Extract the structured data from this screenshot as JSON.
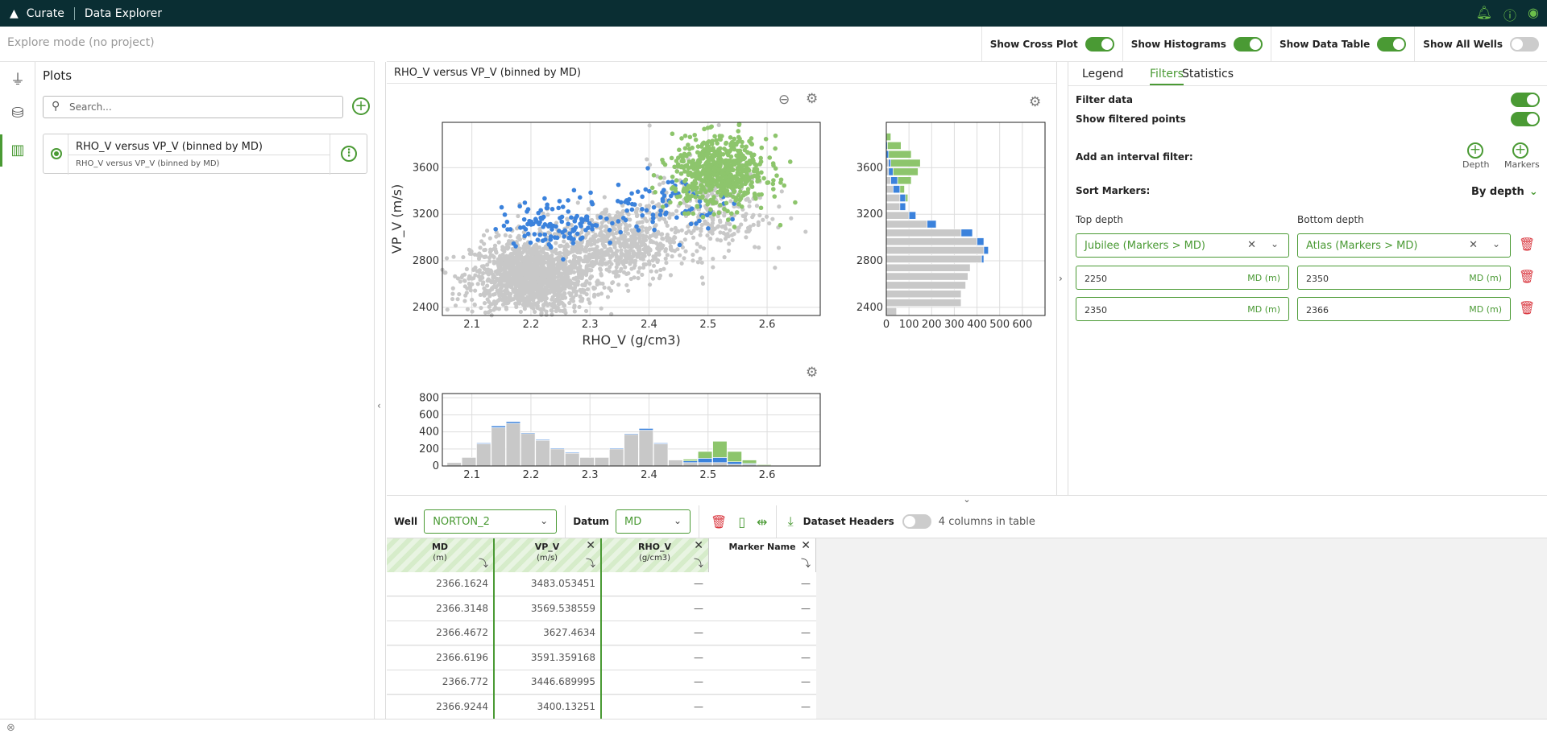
{
  "topbar": {
    "app": "Curate",
    "page": "Data Explorer"
  },
  "mode": "Explore mode (no project)",
  "plots": {
    "title": "Plots",
    "search_placeholder": "Search...",
    "card_title": "RHO_V versus VP_V (binned by MD)",
    "card_subtitle": "RHO_V versus VP_V (binned by MD)"
  },
  "toggles": [
    {
      "label": "Show Cross Plot",
      "on": true
    },
    {
      "label": "Show Histograms",
      "on": true
    },
    {
      "label": "Show Data Table",
      "on": true
    },
    {
      "label": "Show All Wells",
      "on": false
    }
  ],
  "plot_title": "RHO_V versus VP_V (binned by MD)",
  "colors": {
    "accent": "#4a9a34",
    "topbar": "#0a2e33",
    "blue": "#3b82dc",
    "green": "#8dc56c",
    "gray": "#c8c8c8",
    "danger": "#d9363e"
  },
  "chart_data": [
    {
      "type": "scatter",
      "xlabel": "RHO_V (g/cm3)",
      "ylabel": "VP_V (m/s)",
      "xlim": [
        2.05,
        2.69
      ],
      "ylim": [
        2330,
        3990
      ],
      "x_ticks": [
        "2.1",
        "2.2",
        "2.3",
        "2.4",
        "2.5",
        "2.6"
      ],
      "y_ticks": [
        "2400",
        "2800",
        "3200",
        "3600"
      ],
      "grid": true,
      "series": [
        {
          "color": "gray",
          "clusters": [
            {
              "cx": 2.2,
              "cy": 2660,
              "sx": 0.05,
              "sy": 160,
              "n": 1500
            },
            {
              "cx": 2.35,
              "cy": 2950,
              "sx": 0.05,
              "sy": 160,
              "n": 600
            },
            {
              "cx": 2.5,
              "cy": 3250,
              "sx": 0.05,
              "sy": 200,
              "n": 300
            }
          ]
        },
        {
          "color": "blue",
          "clusters": [
            {
              "cx": 2.25,
              "cy": 3120,
              "sx": 0.05,
              "sy": 100,
              "n": 120
            },
            {
              "cx": 2.42,
              "cy": 3300,
              "sx": 0.05,
              "sy": 120,
              "n": 80
            }
          ]
        },
        {
          "color": "green",
          "clusters": [
            {
              "cx": 2.52,
              "cy": 3560,
              "sx": 0.04,
              "sy": 150,
              "n": 650
            }
          ]
        }
      ]
    },
    {
      "type": "bar",
      "orientation": "horizontal",
      "ylim": [
        2330,
        3990
      ],
      "xlim": [
        0,
        700
      ],
      "x_ticks": [
        "0",
        "100",
        "200",
        "300",
        "400",
        "500",
        "600"
      ],
      "y_ticks": [
        "2400",
        "2800",
        "3200",
        "3600"
      ],
      "bins": [
        2365,
        2440,
        2515,
        2590,
        2665,
        2740,
        2815,
        2890,
        2965,
        3040,
        3115,
        3190,
        3265,
        3340,
        3415,
        3490,
        3565,
        3640,
        3715,
        3790,
        3865
      ],
      "series": [
        {
          "color": "gray",
          "values": [
            45,
            330,
            330,
            350,
            360,
            370,
            420,
            430,
            400,
            330,
            180,
            100,
            60,
            60,
            30,
            20,
            10,
            10,
            0,
            0,
            0
          ]
        },
        {
          "color": "blue",
          "values": [
            0,
            0,
            0,
            0,
            0,
            0,
            10,
            20,
            30,
            50,
            40,
            30,
            25,
            25,
            30,
            30,
            20,
            10,
            10,
            5,
            0
          ]
        },
        {
          "color": "green",
          "values": [
            0,
            0,
            0,
            0,
            0,
            0,
            0,
            0,
            0,
            0,
            0,
            0,
            0,
            10,
            20,
            60,
            110,
            130,
            100,
            60,
            20
          ]
        }
      ]
    },
    {
      "type": "bar",
      "orientation": "vertical",
      "xlim": [
        2.05,
        2.69
      ],
      "ylim": [
        0,
        850
      ],
      "x_ticks": [
        "2.1",
        "2.2",
        "2.3",
        "2.4",
        "2.5",
        "2.6"
      ],
      "y_ticks": [
        "0",
        "200",
        "400",
        "600",
        "800"
      ],
      "bins": [
        2.07,
        2.095,
        2.12,
        2.145,
        2.17,
        2.195,
        2.22,
        2.245,
        2.27,
        2.295,
        2.32,
        2.345,
        2.37,
        2.395,
        2.42,
        2.445,
        2.47,
        2.495,
        2.52,
        2.545,
        2.57,
        2.595,
        2.62
      ],
      "series": [
        {
          "color": "gray",
          "values": [
            40,
            100,
            260,
            450,
            500,
            380,
            300,
            200,
            150,
            100,
            100,
            200,
            370,
            420,
            260,
            70,
            40,
            40,
            40,
            20,
            20,
            5,
            0
          ]
        },
        {
          "color": "blue",
          "values": [
            0,
            0,
            10,
            20,
            20,
            10,
            10,
            10,
            10,
            0,
            0,
            10,
            10,
            20,
            10,
            0,
            20,
            50,
            60,
            30,
            10,
            0,
            0
          ]
        },
        {
          "color": "green",
          "values": [
            0,
            0,
            0,
            0,
            0,
            0,
            0,
            0,
            0,
            0,
            0,
            0,
            0,
            0,
            0,
            0,
            20,
            80,
            190,
            120,
            40,
            10,
            5
          ]
        }
      ]
    }
  ],
  "filters": {
    "tabs": [
      "Legend",
      "Filters",
      "Statistics"
    ],
    "filter_data": "Filter data",
    "show_filtered": "Show filtered points",
    "add_interval": "Add an interval filter:",
    "depth_label": "Depth",
    "markers_label": "Markers",
    "sort_markers": "Sort Markers:",
    "sort_value": "By depth",
    "top_depth": "Top depth",
    "bottom_depth": "Bottom depth",
    "top_marker": "Jubilee (Markers > MD)",
    "bottom_marker": "Atlas (Markers > MD)",
    "unit": "MD (m)",
    "rows": [
      [
        "2250",
        "2350"
      ],
      [
        "2350",
        "2366"
      ]
    ]
  },
  "table": {
    "well_label": "Well",
    "well_value": "NORTON_2",
    "datum_label": "Datum",
    "datum_value": "MD",
    "dataset_headers": "Dataset Headers",
    "columns_count": "4 columns in table",
    "columns": [
      {
        "name": "MD",
        "unit": "(m)"
      },
      {
        "name": "VP_V",
        "unit": "(m/s)"
      },
      {
        "name": "RHO_V",
        "unit": "(g/cm3)"
      },
      {
        "name": "Marker Name",
        "unit": ""
      }
    ],
    "rows": [
      [
        "2366.1624",
        "3483.053451",
        "—",
        "—"
      ],
      [
        "2366.3148",
        "3569.538559",
        "—",
        "—"
      ],
      [
        "2366.4672",
        "3627.4634",
        "—",
        "—"
      ],
      [
        "2366.6196",
        "3591.359168",
        "—",
        "—"
      ],
      [
        "2366.772",
        "3446.689995",
        "—",
        "—"
      ],
      [
        "2366.9244",
        "3400.13251",
        "—",
        "—"
      ]
    ]
  }
}
